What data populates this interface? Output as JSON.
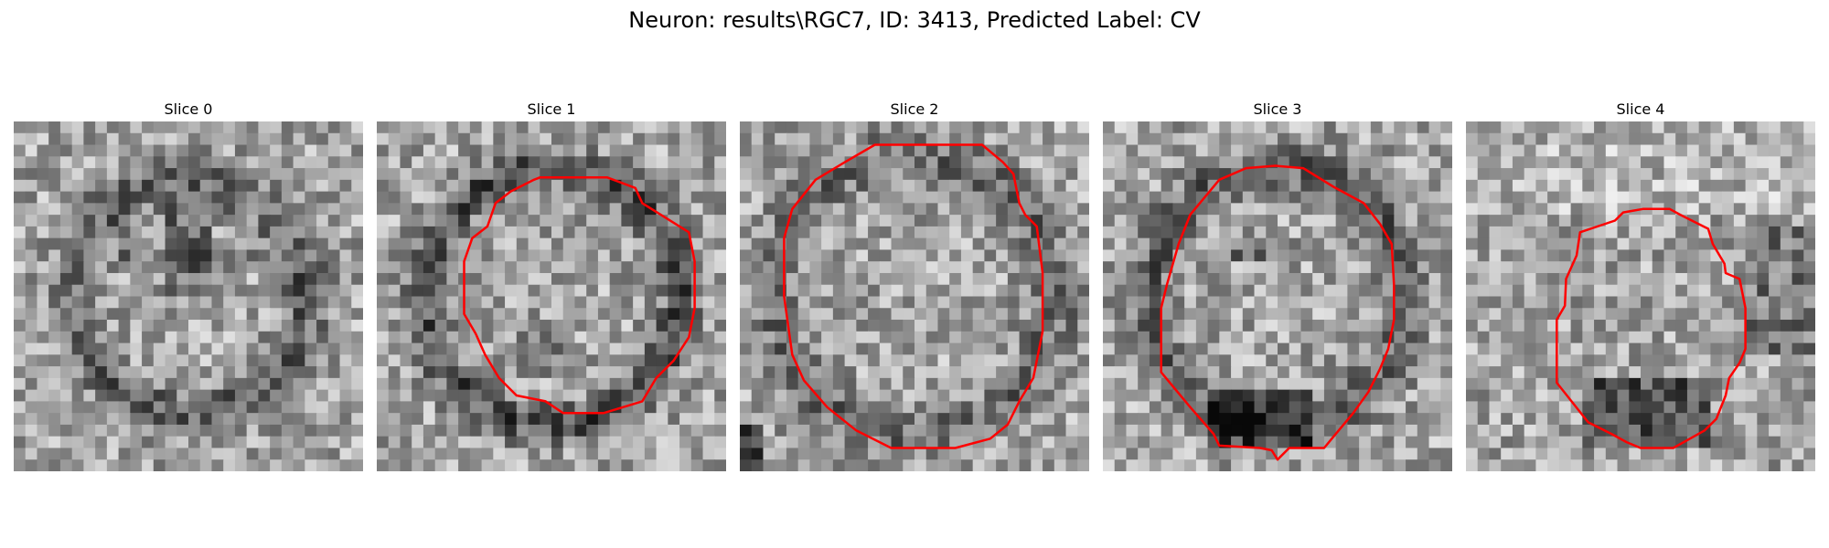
{
  "figure": {
    "title": "Neuron: results\\RGC7, ID: 3413, Predicted Label: CV"
  },
  "panels": [
    {
      "title": "Slice 0",
      "has_contour": false,
      "seed": 11,
      "feature": "ring-dark-lobes"
    },
    {
      "title": "Slice 1",
      "has_contour": true,
      "seed": 23,
      "feature": "ring-dark"
    },
    {
      "title": "Slice 2",
      "has_contour": true,
      "seed": 37,
      "feature": "soft-ring"
    },
    {
      "title": "Slice 3",
      "has_contour": true,
      "seed": 41,
      "feature": "ring-dark-bottom"
    },
    {
      "title": "Slice 4",
      "has_contour": true,
      "seed": 53,
      "feature": "dark-bottom"
    }
  ],
  "colors": {
    "contour": "#ff0000",
    "background": "#ffffff"
  }
}
